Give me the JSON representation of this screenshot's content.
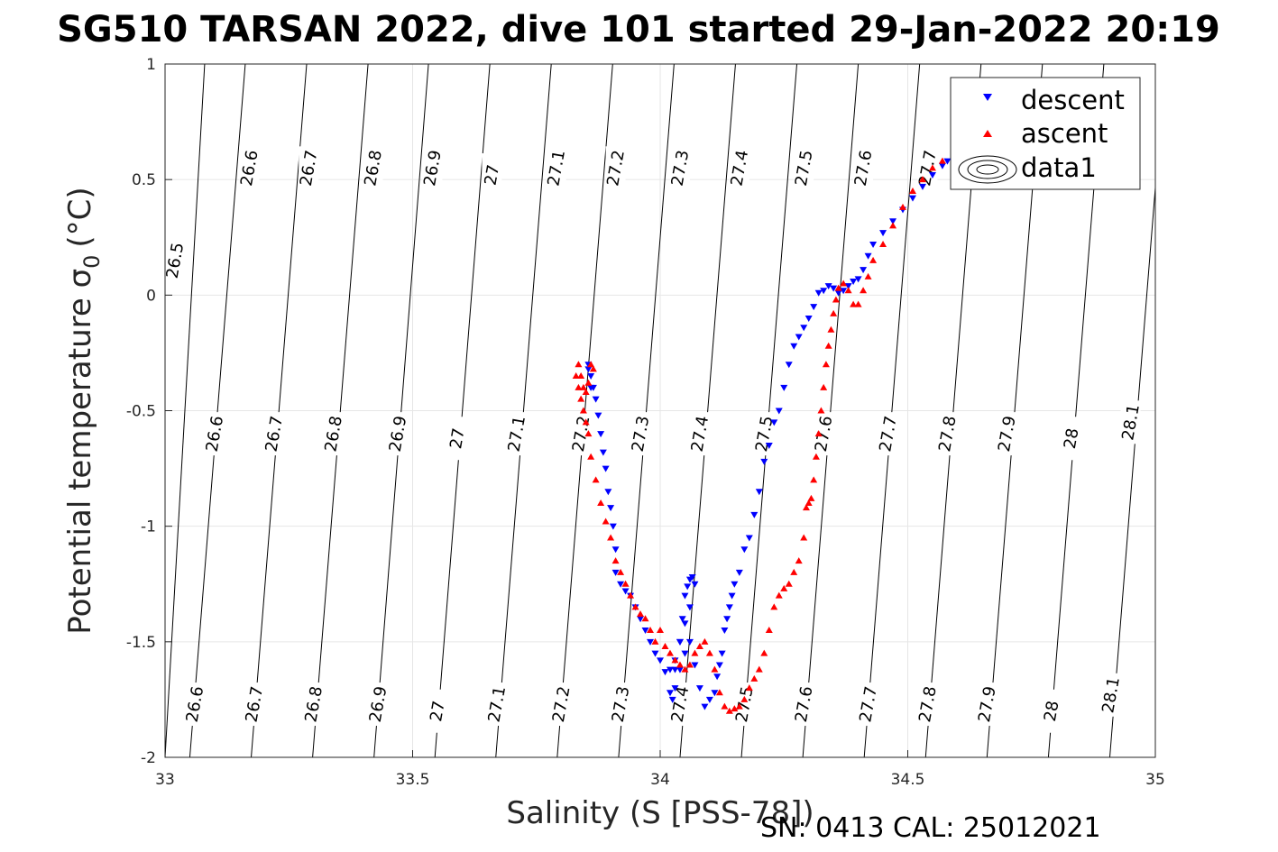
{
  "chart_data": {
    "type": "scatter",
    "title": "SG510 TARSAN 2022, dive 101 started 29-Jan-2022 20:19",
    "xlabel": "Salinity (S [PSS-78])",
    "ylabel": "Potential temperature σ",
    "ylabel_sub": "0",
    "ylabel_unit": "(°C)",
    "xlim": [
      33,
      35
    ],
    "ylim": [
      -2,
      1
    ],
    "xticks": [
      "33",
      "33.5",
      "34",
      "34.5",
      "35"
    ],
    "yticks": [
      "-2",
      "-1.5",
      "-1",
      "-0.5",
      "0",
      "0.5",
      "1"
    ],
    "grid": true,
    "legend_position": "top-right",
    "footer": "SN: 0413  CAL: 25012021",
    "colors": {
      "descent": "#0000ff",
      "ascent": "#ff0000",
      "contour": "#000000"
    },
    "isopycnals": [
      {
        "level": "26.5",
        "xa": 33.0,
        "xb": 33.08
      },
      {
        "level": "26.6",
        "xa": 33.05,
        "xb": 33.162
      },
      {
        "level": "26.7",
        "xa": 33.174,
        "xb": 33.286
      },
      {
        "level": "26.8",
        "xa": 33.298,
        "xb": 33.41
      },
      {
        "level": "26.9",
        "xa": 33.422,
        "xb": 33.532
      },
      {
        "level": "27",
        "xa": 33.545,
        "xb": 33.656
      },
      {
        "level": "27.1",
        "xa": 33.668,
        "xb": 33.78
      },
      {
        "level": "27.2",
        "xa": 33.792,
        "xb": 33.904
      },
      {
        "level": "27.3",
        "xa": 33.916,
        "xb": 34.028
      },
      {
        "level": "27.4",
        "xa": 34.04,
        "xb": 34.152
      },
      {
        "level": "27.5",
        "xa": 34.164,
        "xb": 34.276
      },
      {
        "level": "27.6",
        "xa": 34.288,
        "xb": 34.4
      },
      {
        "level": "27.7",
        "xa": 34.412,
        "xb": 34.524
      },
      {
        "level": "27.8",
        "xa": 34.536,
        "xb": 34.648
      },
      {
        "level": "27.9",
        "xa": 34.66,
        "xb": 34.772
      },
      {
        "level": "28",
        "xa": 34.784,
        "xb": 34.896
      },
      {
        "level": "28.1",
        "xa": 34.908,
        "xb": 35.02
      }
    ],
    "contour_labels": [
      {
        "text": "26.5",
        "x": 33.02,
        "y": 0.15
      },
      {
        "text": "26.6",
        "x": 33.17,
        "y": 0.55
      },
      {
        "text": "26.7",
        "x": 33.29,
        "y": 0.55
      },
      {
        "text": "26.8",
        "x": 33.42,
        "y": 0.55
      },
      {
        "text": "26.9",
        "x": 33.54,
        "y": 0.55
      },
      {
        "text": "27",
        "x": 33.66,
        "y": 0.52
      },
      {
        "text": "27.1",
        "x": 33.79,
        "y": 0.55
      },
      {
        "text": "27.2",
        "x": 33.91,
        "y": 0.55
      },
      {
        "text": "27.3",
        "x": 34.04,
        "y": 0.55
      },
      {
        "text": "27.4",
        "x": 34.16,
        "y": 0.55
      },
      {
        "text": "27.5",
        "x": 34.29,
        "y": 0.55
      },
      {
        "text": "27.6",
        "x": 34.41,
        "y": 0.55
      },
      {
        "text": "27.7",
        "x": 34.54,
        "y": 0.55
      },
      {
        "text": "26.6",
        "x": 33.1,
        "y": -0.6
      },
      {
        "text": "26.7",
        "x": 33.22,
        "y": -0.6
      },
      {
        "text": "26.8",
        "x": 33.34,
        "y": -0.6
      },
      {
        "text": "26.9",
        "x": 33.47,
        "y": -0.6
      },
      {
        "text": "27",
        "x": 33.59,
        "y": -0.62
      },
      {
        "text": "27.1",
        "x": 33.71,
        "y": -0.6
      },
      {
        "text": "27.2",
        "x": 33.84,
        "y": -0.6
      },
      {
        "text": "27.3",
        "x": 33.96,
        "y": -0.6
      },
      {
        "text": "27.4",
        "x": 34.08,
        "y": -0.6
      },
      {
        "text": "27.5",
        "x": 34.21,
        "y": -0.6
      },
      {
        "text": "27.6",
        "x": 34.33,
        "y": -0.6
      },
      {
        "text": "27.7",
        "x": 34.46,
        "y": -0.6
      },
      {
        "text": "27.8",
        "x": 34.58,
        "y": -0.6
      },
      {
        "text": "27.9",
        "x": 34.7,
        "y": -0.6
      },
      {
        "text": "28",
        "x": 34.83,
        "y": -0.62
      },
      {
        "text": "28.1",
        "x": 34.95,
        "y": -0.55
      },
      {
        "text": "26.6",
        "x": 33.06,
        "y": -1.77
      },
      {
        "text": "26.7",
        "x": 33.18,
        "y": -1.77
      },
      {
        "text": "26.8",
        "x": 33.3,
        "y": -1.77
      },
      {
        "text": "26.9",
        "x": 33.43,
        "y": -1.77
      },
      {
        "text": "27",
        "x": 33.55,
        "y": -1.8
      },
      {
        "text": "27.1",
        "x": 33.67,
        "y": -1.77
      },
      {
        "text": "27.2",
        "x": 33.8,
        "y": -1.77
      },
      {
        "text": "27.3",
        "x": 33.92,
        "y": -1.77
      },
      {
        "text": "27.4",
        "x": 34.04,
        "y": -1.77
      },
      {
        "text": "27.5",
        "x": 34.17,
        "y": -1.77
      },
      {
        "text": "27.6",
        "x": 34.29,
        "y": -1.77
      },
      {
        "text": "27.7",
        "x": 34.42,
        "y": -1.77
      },
      {
        "text": "27.8",
        "x": 34.54,
        "y": -1.77
      },
      {
        "text": "27.9",
        "x": 34.66,
        "y": -1.77
      },
      {
        "text": "28",
        "x": 34.79,
        "y": -1.8
      },
      {
        "text": "28.1",
        "x": 34.91,
        "y": -1.73
      }
    ],
    "series": [
      {
        "name": "descent",
        "marker": "triangle-down",
        "color": "#0000ff",
        "x": [
          34.58,
          34.57,
          34.55,
          34.53,
          34.51,
          34.49,
          34.47,
          34.45,
          34.43,
          34.42,
          34.41,
          34.4,
          34.39,
          34.38,
          34.37,
          34.36,
          34.35,
          34.34,
          34.33,
          34.32,
          34.31,
          34.3,
          34.29,
          34.28,
          34.27,
          34.26,
          34.25,
          34.24,
          34.23,
          34.22,
          34.21,
          34.2,
          34.19,
          34.18,
          34.17,
          34.16,
          34.15,
          34.145,
          34.14,
          34.135,
          34.13,
          34.125,
          34.12,
          34.115,
          34.11,
          34.1,
          34.09,
          34.08,
          34.07,
          34.06,
          34.05,
          34.04,
          34.03,
          34.025,
          34.02,
          34.03,
          34.04,
          34.05,
          34.06,
          34.07,
          34.065,
          34.06,
          34.055,
          34.05,
          34.045,
          34.04,
          34.03,
          34.02,
          34.01,
          34.0,
          33.99,
          33.98,
          33.97,
          33.96,
          33.95,
          33.94,
          33.93,
          33.92,
          33.91,
          33.91,
          33.905,
          33.9,
          33.895,
          33.89,
          33.885,
          33.88,
          33.875,
          33.87,
          33.865,
          33.86,
          33.855,
          33.855,
          33.86
        ],
        "y": [
          0.58,
          0.56,
          0.52,
          0.47,
          0.42,
          0.37,
          0.32,
          0.27,
          0.22,
          0.17,
          0.11,
          0.07,
          0.06,
          0.04,
          0.02,
          0.01,
          0.03,
          0.04,
          0.02,
          0.01,
          -0.05,
          -0.1,
          -0.14,
          -0.18,
          -0.22,
          -0.3,
          -0.4,
          -0.5,
          -0.55,
          -0.65,
          -0.72,
          -0.85,
          -0.95,
          -1.05,
          -1.1,
          -1.2,
          -1.25,
          -1.3,
          -1.35,
          -1.4,
          -1.45,
          -1.55,
          -1.6,
          -1.65,
          -1.72,
          -1.75,
          -1.78,
          -1.7,
          -1.6,
          -1.5,
          -1.55,
          -1.62,
          -1.7,
          -1.75,
          -1.72,
          -1.62,
          -1.5,
          -1.42,
          -1.35,
          -1.25,
          -1.22,
          -1.23,
          -1.26,
          -1.3,
          -1.4,
          -1.5,
          -1.58,
          -1.62,
          -1.63,
          -1.58,
          -1.55,
          -1.5,
          -1.45,
          -1.4,
          -1.35,
          -1.3,
          -1.28,
          -1.25,
          -1.2,
          -1.1,
          -1.0,
          -0.92,
          -0.85,
          -0.75,
          -0.68,
          -0.6,
          -0.52,
          -0.45,
          -0.4,
          -0.35,
          -0.32,
          -0.3,
          -0.4
        ]
      },
      {
        "name": "ascent",
        "marker": "triangle-up",
        "color": "#ff0000",
        "x": [
          34.57,
          34.55,
          34.53,
          34.51,
          34.49,
          34.47,
          34.45,
          34.43,
          34.42,
          34.41,
          34.4,
          34.39,
          34.38,
          34.37,
          34.36,
          34.355,
          34.35,
          34.345,
          34.34,
          34.335,
          34.33,
          34.325,
          34.32,
          34.315,
          34.31,
          34.305,
          34.3,
          34.295,
          34.29,
          34.28,
          34.27,
          34.26,
          34.25,
          34.24,
          34.23,
          34.22,
          34.21,
          34.2,
          34.19,
          34.18,
          34.17,
          34.16,
          34.15,
          34.14,
          34.13,
          34.12,
          34.11,
          34.1,
          34.09,
          34.08,
          34.07,
          34.06,
          34.05,
          34.04,
          34.03,
          34.02,
          34.01,
          34.0,
          33.99,
          33.98,
          33.97,
          33.96,
          33.95,
          33.94,
          33.93,
          33.92,
          33.91,
          33.9,
          33.89,
          33.88,
          33.87,
          33.86,
          33.855,
          33.85,
          33.845,
          33.84,
          33.835,
          33.83,
          33.835,
          33.84,
          33.845,
          33.85,
          33.855,
          33.86,
          33.865
        ],
        "y": [
          0.58,
          0.55,
          0.5,
          0.45,
          0.38,
          0.3,
          0.22,
          0.15,
          0.08,
          0.02,
          -0.04,
          -0.04,
          0.02,
          0.05,
          0.03,
          -0.02,
          -0.08,
          -0.15,
          -0.22,
          -0.3,
          -0.4,
          -0.5,
          -0.6,
          -0.7,
          -0.8,
          -0.88,
          -0.9,
          -0.92,
          -1.05,
          -1.15,
          -1.2,
          -1.25,
          -1.27,
          -1.3,
          -1.35,
          -1.45,
          -1.55,
          -1.62,
          -1.66,
          -1.7,
          -1.75,
          -1.78,
          -1.79,
          -1.8,
          -1.78,
          -1.72,
          -1.62,
          -1.55,
          -1.5,
          -1.52,
          -1.55,
          -1.6,
          -1.62,
          -1.6,
          -1.58,
          -1.55,
          -1.52,
          -1.45,
          -1.5,
          -1.45,
          -1.4,
          -1.38,
          -1.35,
          -1.3,
          -1.25,
          -1.2,
          -1.15,
          -1.05,
          -0.98,
          -0.9,
          -0.8,
          -0.7,
          -0.6,
          -0.55,
          -0.5,
          -0.45,
          -0.4,
          -0.35,
          -0.3,
          -0.35,
          -0.4,
          -0.42,
          -0.38,
          -0.3,
          -0.32
        ]
      }
    ],
    "legend": [
      {
        "label": "descent",
        "symbol": "triangle-down"
      },
      {
        "label": "ascent",
        "symbol": "triangle-up"
      },
      {
        "label": "data1",
        "symbol": "contour"
      }
    ]
  }
}
